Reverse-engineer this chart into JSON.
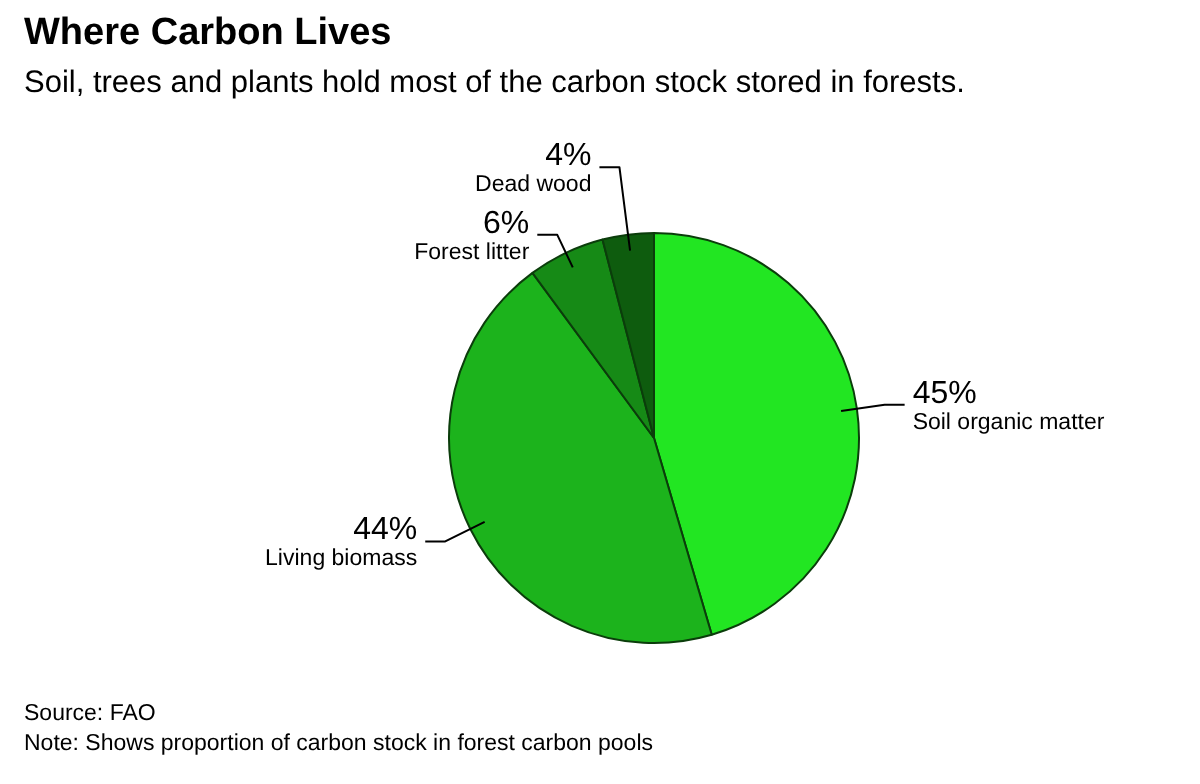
{
  "chart_data": {
    "type": "pie",
    "title": "Where Carbon Lives",
    "subtitle": "Soil, trees and plants hold most of the carbon stock stored in forests.",
    "categories": [
      "Soil organic matter",
      "Living biomass",
      "Forest litter",
      "Dead wood"
    ],
    "values": [
      45,
      44,
      6,
      4
    ],
    "value_labels": [
      "45%",
      "44%",
      "6%",
      "4%"
    ],
    "colors": [
      "#22e622",
      "#1cb31c",
      "#168a16",
      "#0e5c0e"
    ],
    "annotations": [
      "Source: FAO",
      "Note: Shows proportion of carbon stock in forest carbon pools"
    ]
  }
}
